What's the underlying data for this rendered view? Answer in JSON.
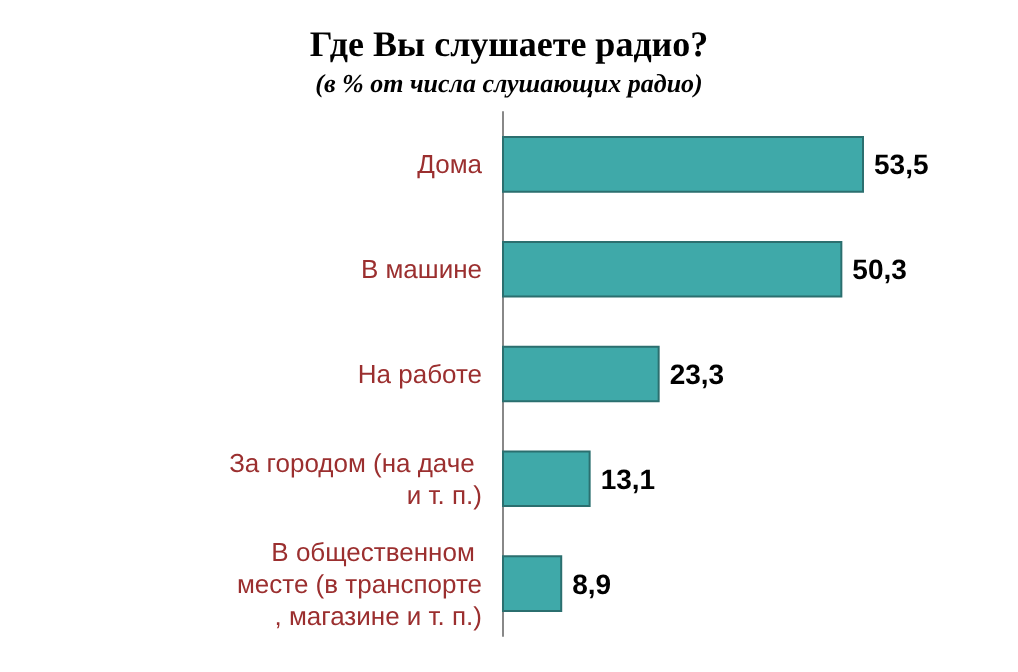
{
  "chart_data": {
    "type": "bar",
    "orientation": "horizontal",
    "title": "Где Вы слушаете радио?",
    "subtitle": "(в % от числа слушающих радио)",
    "categories": [
      "Дома",
      "В машине",
      "На работе",
      "За городом (на даче и т. п.)",
      "В общественном месте (в транспорте, магазине и т. п.)"
    ],
    "values": [
      53.5,
      50.3,
      23.3,
      13.1,
      8.9
    ],
    "value_labels": [
      "53,5",
      "50,3",
      "23,3",
      "13,1",
      "8,9"
    ],
    "color": "#3fa9a9"
  }
}
